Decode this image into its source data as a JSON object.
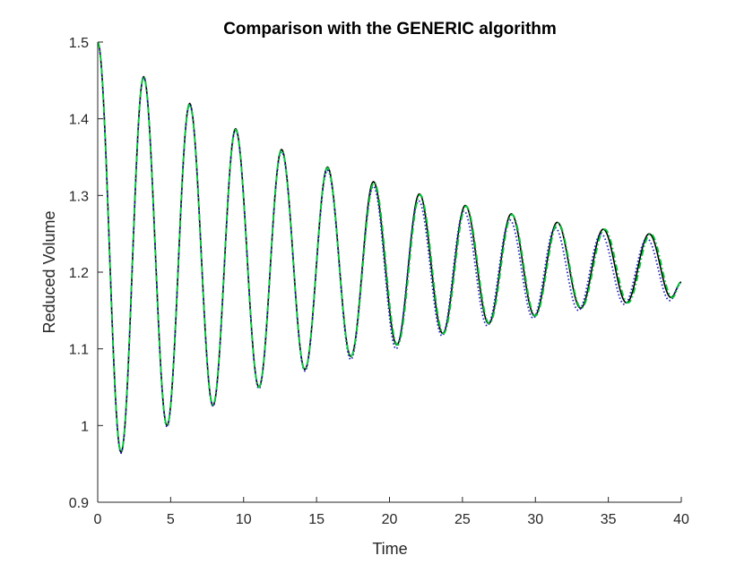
{
  "chart_data": {
    "type": "line",
    "title": "Comparison with the GENERIC algorithm",
    "xlabel": "Time",
    "ylabel": "Reduced Volume",
    "xlim": [
      0,
      40
    ],
    "ylim": [
      0.9,
      1.5
    ],
    "xticks": [
      "0",
      "5",
      "10",
      "15",
      "20",
      "25",
      "30",
      "35",
      "40"
    ],
    "yticks": [
      "0.9",
      "1",
      "1.1",
      "1.2",
      "1.3",
      "1.4",
      "1.5"
    ],
    "grid": false,
    "legend": "none",
    "series": [
      {
        "style": "solid",
        "color": "#000000",
        "x": [
          0,
          1.6,
          3.15,
          4.75,
          6.3,
          7.9,
          9.45,
          11.05,
          12.6,
          14.2,
          15.75,
          17.35,
          18.9,
          20.5,
          22.05,
          23.65,
          25.2,
          26.8,
          28.35,
          29.95,
          31.5,
          33.1,
          34.65,
          36.25,
          37.8,
          39.3,
          40
        ],
        "y": [
          1.5,
          0.965,
          1.455,
          1.0,
          1.42,
          1.026,
          1.387,
          1.05,
          1.36,
          1.073,
          1.337,
          1.09,
          1.318,
          1.105,
          1.302,
          1.12,
          1.287,
          1.133,
          1.276,
          1.143,
          1.265,
          1.153,
          1.256,
          1.16,
          1.25,
          1.167,
          1.187
        ]
      },
      {
        "style": "dotted",
        "color": "#1f1fbf",
        "x": [
          0,
          1.6,
          3.15,
          4.75,
          6.3,
          7.9,
          9.45,
          11.05,
          12.6,
          14.2,
          15.75,
          17.35,
          18.9,
          20.45,
          22.0,
          23.6,
          25.1,
          26.7,
          28.25,
          29.85,
          31.35,
          32.95,
          34.5,
          36.1,
          37.65,
          39.2,
          40
        ],
        "y": [
          1.5,
          0.964,
          1.454,
          0.998,
          1.418,
          1.025,
          1.385,
          1.048,
          1.357,
          1.071,
          1.333,
          1.086,
          1.312,
          1.1,
          1.293,
          1.117,
          1.28,
          1.13,
          1.268,
          1.14,
          1.258,
          1.15,
          1.25,
          1.158,
          1.244,
          1.163,
          1.185
        ]
      },
      {
        "style": "dashdot",
        "color": "#00cc33",
        "x": [
          0,
          1.6,
          3.15,
          4.75,
          6.3,
          7.9,
          9.45,
          11.05,
          12.6,
          14.2,
          15.75,
          17.35,
          18.95,
          20.55,
          22.1,
          23.7,
          25.25,
          26.85,
          28.4,
          30.0,
          31.55,
          33.15,
          34.75,
          36.35,
          37.9,
          39.4,
          40
        ],
        "y": [
          1.5,
          0.966,
          1.455,
          1.0,
          1.419,
          1.027,
          1.386,
          1.05,
          1.359,
          1.073,
          1.336,
          1.09,
          1.317,
          1.105,
          1.301,
          1.12,
          1.286,
          1.133,
          1.275,
          1.143,
          1.264,
          1.153,
          1.256,
          1.16,
          1.25,
          1.167,
          1.188
        ]
      }
    ]
  }
}
